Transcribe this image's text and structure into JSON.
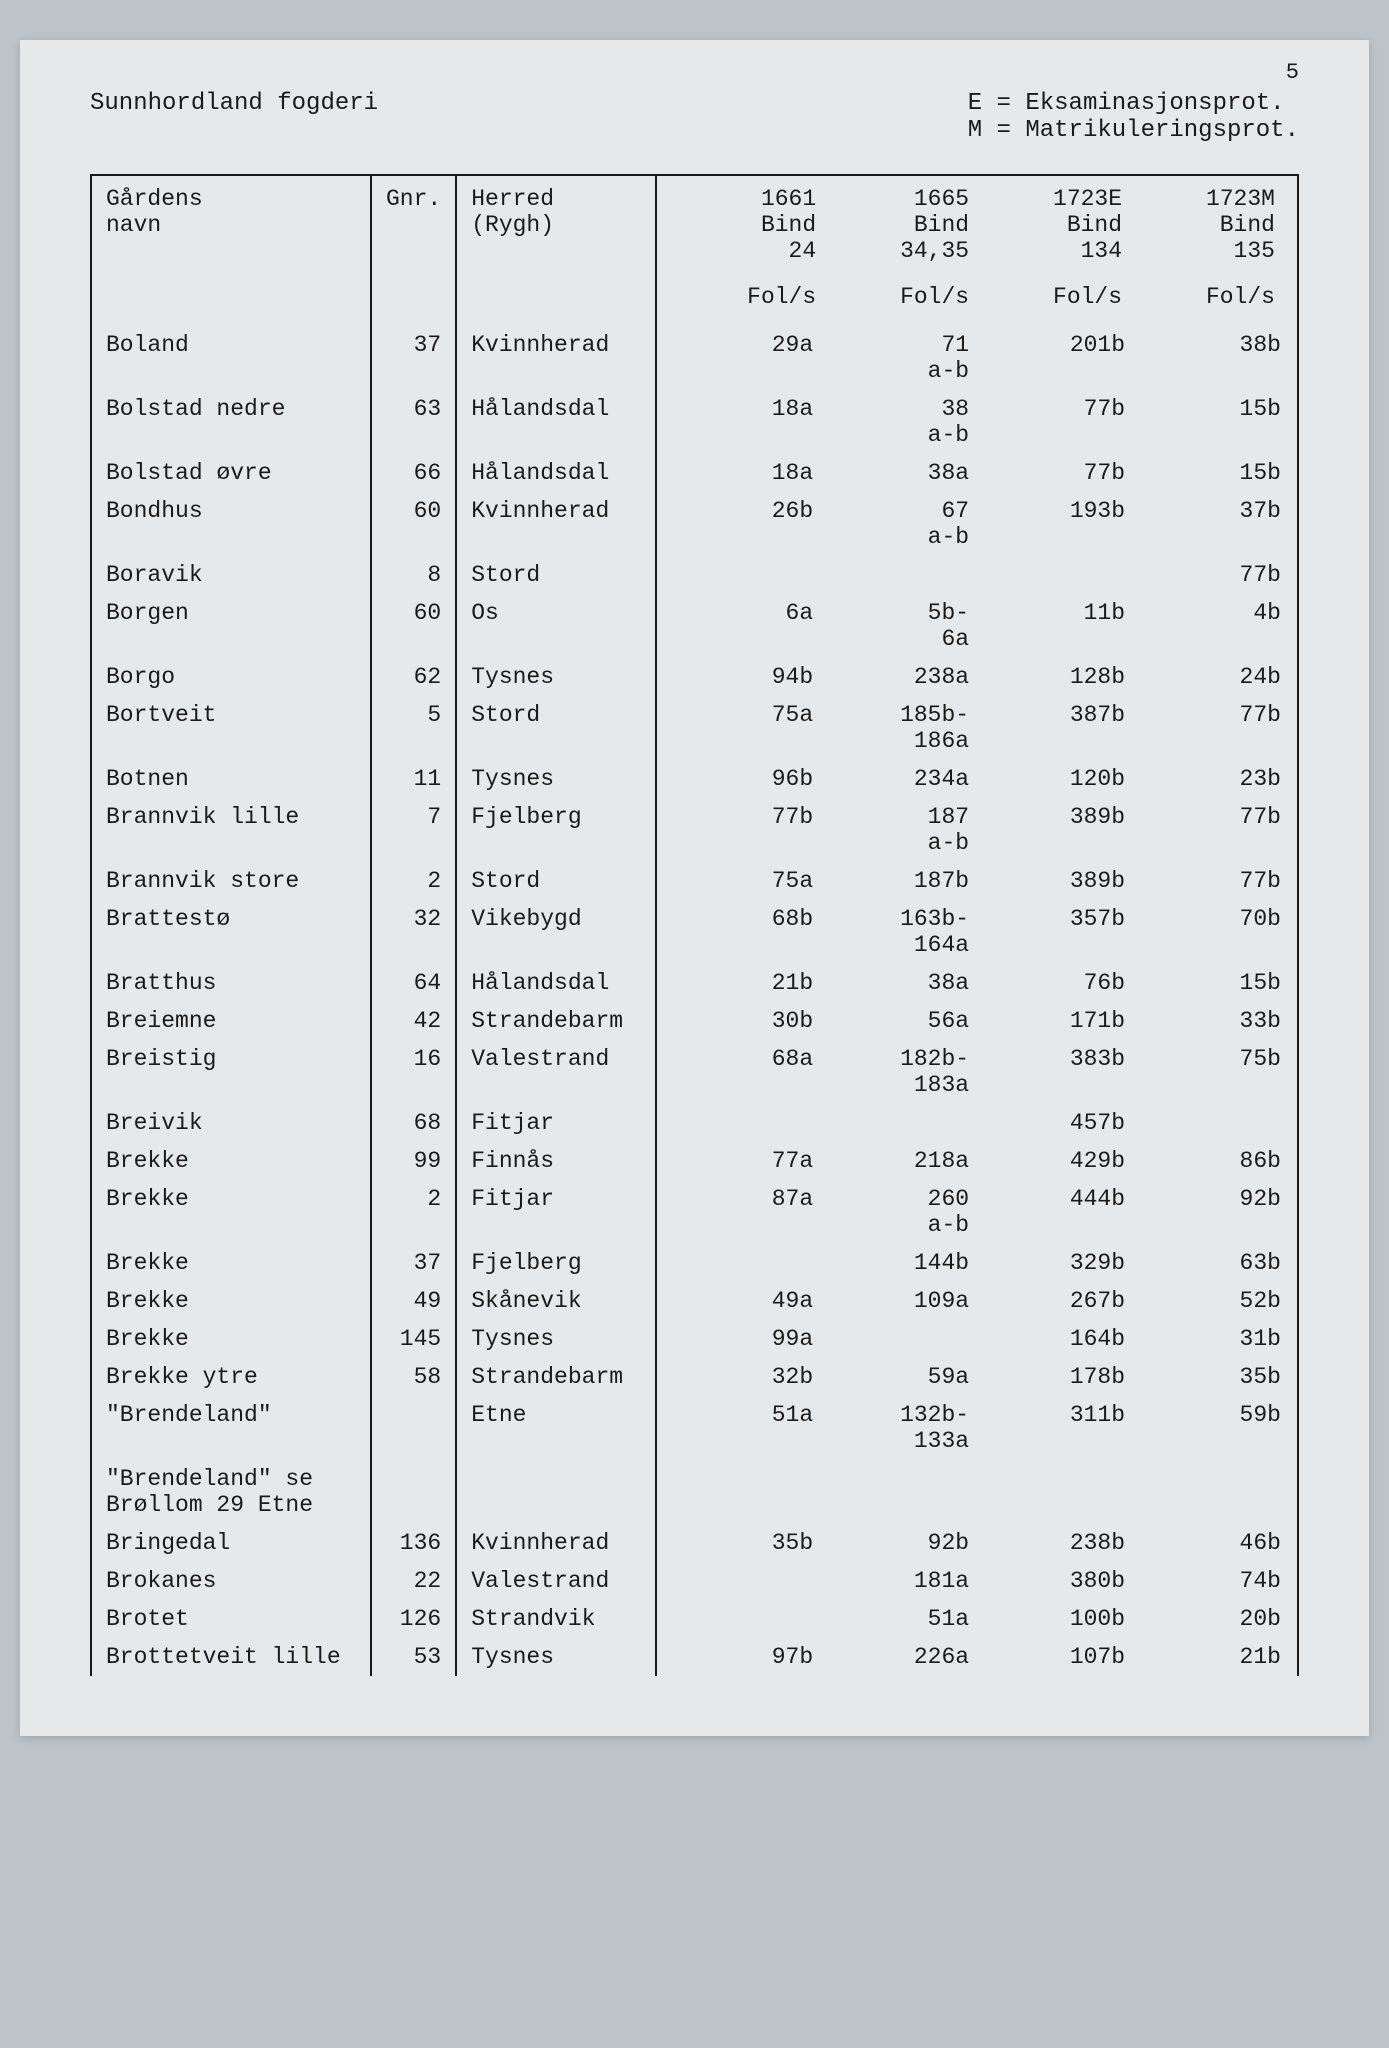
{
  "page_number": "5",
  "header_left": "Sunnhordland fogderi",
  "header_right": "E = Eksaminasjonsprot.\nM = Matrikuleringsprot.",
  "columns": {
    "name_h1": "Gårdens",
    "name_h2": "navn",
    "gnr_h1": "Gnr.",
    "gnr_h2": "",
    "herred_h1": "Herred",
    "herred_h2": "(Rygh)",
    "c1_h1": "1661",
    "c1_h2": "Bind",
    "c1_h3": "24",
    "c2_h1": "1665",
    "c2_h2": "Bind",
    "c2_h3": "34,35",
    "c3_h1": "1723E",
    "c3_h2": "Bind",
    "c3_h3": "134",
    "c4_h1": "1723M",
    "c4_h2": "Bind",
    "c4_h3": "135",
    "fols": "Fol/s"
  },
  "rows": [
    {
      "name": "Boland",
      "gnr": "37",
      "herred": "Kvinnherad",
      "c1": "29a",
      "c2": "71\na-b",
      "c3": "201b",
      "c4": "38b"
    },
    {
      "name": "Bolstad nedre",
      "gnr": "63",
      "herred": "Hålandsdal",
      "c1": "18a",
      "c2": "38\na-b",
      "c3": "77b",
      "c4": "15b"
    },
    {
      "name": "Bolstad øvre",
      "gnr": "66",
      "herred": "Hålandsdal",
      "c1": "18a",
      "c2": "38a",
      "c3": "77b",
      "c4": "15b"
    },
    {
      "name": "Bondhus",
      "gnr": "60",
      "herred": "Kvinnherad",
      "c1": "26b",
      "c2": "67\na-b",
      "c3": "193b",
      "c4": "37b"
    },
    {
      "name": "Boravik",
      "gnr": "8",
      "herred": "Stord",
      "c1": "",
      "c2": "",
      "c3": "",
      "c4": "77b"
    },
    {
      "name": "Borgen",
      "gnr": "60",
      "herred": "Os",
      "c1": "6a",
      "c2": "5b-\n6a",
      "c3": "11b",
      "c4": "4b"
    },
    {
      "name": "Borgo",
      "gnr": "62",
      "herred": "Tysnes",
      "c1": "94b",
      "c2": "238a",
      "c3": "128b",
      "c4": "24b"
    },
    {
      "name": "Bortveit",
      "gnr": "5",
      "herred": "Stord",
      "c1": "75a",
      "c2": "185b-\n186a",
      "c3": "387b",
      "c4": "77b"
    },
    {
      "name": "Botnen",
      "gnr": "11",
      "herred": "Tysnes",
      "c1": "96b",
      "c2": "234a",
      "c3": "120b",
      "c4": "23b"
    },
    {
      "name": "Brannvik lille",
      "gnr": "7",
      "herred": "Fjelberg",
      "c1": "77b",
      "c2": "187\na-b",
      "c3": "389b",
      "c4": "77b"
    },
    {
      "name": "Brannvik store",
      "gnr": "2",
      "herred": "Stord",
      "c1": "75a",
      "c2": "187b",
      "c3": "389b",
      "c4": "77b"
    },
    {
      "name": "Brattestø",
      "gnr": "32",
      "herred": "Vikebygd",
      "c1": "68b",
      "c2": "163b-\n164a",
      "c3": "357b",
      "c4": "70b"
    },
    {
      "name": "Bratthus",
      "gnr": "64",
      "herred": "Hålandsdal",
      "c1": "21b",
      "c2": "38a",
      "c3": "76b",
      "c4": "15b"
    },
    {
      "name": "Breiemne",
      "gnr": "42",
      "herred": "Strandebarm",
      "c1": "30b",
      "c2": "56a",
      "c3": "171b",
      "c4": "33b"
    },
    {
      "name": "Breistig",
      "gnr": "16",
      "herred": "Valestrand",
      "c1": "68a",
      "c2": "182b-\n183a",
      "c3": "383b",
      "c4": "75b"
    },
    {
      "name": "Breivik",
      "gnr": "68",
      "herred": "Fitjar",
      "c1": "",
      "c2": "",
      "c3": "457b",
      "c4": ""
    },
    {
      "name": "Brekke",
      "gnr": "99",
      "herred": "Finnås",
      "c1": "77a",
      "c2": "218a",
      "c3": "429b",
      "c4": "86b"
    },
    {
      "name": "Brekke",
      "gnr": "2",
      "herred": "Fitjar",
      "c1": "87a",
      "c2": "260\na-b",
      "c3": "444b",
      "c4": "92b"
    },
    {
      "name": "Brekke",
      "gnr": "37",
      "herred": "Fjelberg",
      "c1": "",
      "c2": "144b",
      "c3": "329b",
      "c4": "63b"
    },
    {
      "name": "Brekke",
      "gnr": "49",
      "herred": "Skånevik",
      "c1": "49a",
      "c2": "109a",
      "c3": "267b",
      "c4": "52b"
    },
    {
      "name": "Brekke",
      "gnr": "145",
      "herred": "Tysnes",
      "c1": "99a",
      "c2": "",
      "c3": "164b",
      "c4": "31b"
    },
    {
      "name": "Brekke ytre",
      "gnr": "58",
      "herred": "Strandebarm",
      "c1": "32b",
      "c2": "59a",
      "c3": "178b",
      "c4": "35b"
    },
    {
      "name": "\"Brendeland\"",
      "gnr": "",
      "herred": "Etne",
      "c1": "51a",
      "c2": "132b-\n133a",
      "c3": "311b",
      "c4": "59b"
    },
    {
      "name": "\"Brendeland\" se\nBrøllom 29 Etne",
      "gnr": "",
      "herred": "",
      "c1": "",
      "c2": "",
      "c3": "",
      "c4": ""
    },
    {
      "name": "Bringedal",
      "gnr": "136",
      "herred": "Kvinnherad",
      "c1": "35b",
      "c2": "92b",
      "c3": "238b",
      "c4": "46b"
    },
    {
      "name": "Brokanes",
      "gnr": "22",
      "herred": "Valestrand",
      "c1": "",
      "c2": "181a",
      "c3": "380b",
      "c4": "74b"
    },
    {
      "name": "Brotet",
      "gnr": "126",
      "herred": "Strandvik",
      "c1": "",
      "c2": "51a",
      "c3": "100b",
      "c4": "20b"
    },
    {
      "name": "Brottetveit lille",
      "gnr": "53",
      "herred": "Tysnes",
      "c1": "97b",
      "c2": "226a",
      "c3": "107b",
      "c4": "21b"
    }
  ],
  "styling": {
    "background_page": "#e6e9ec",
    "background_outer": "#bcc3c9",
    "text_color": "#1a1a1a",
    "border_color": "#1a1a1a",
    "font_family": "Courier New",
    "font_size_body": 23,
    "font_size_header": 24
  }
}
